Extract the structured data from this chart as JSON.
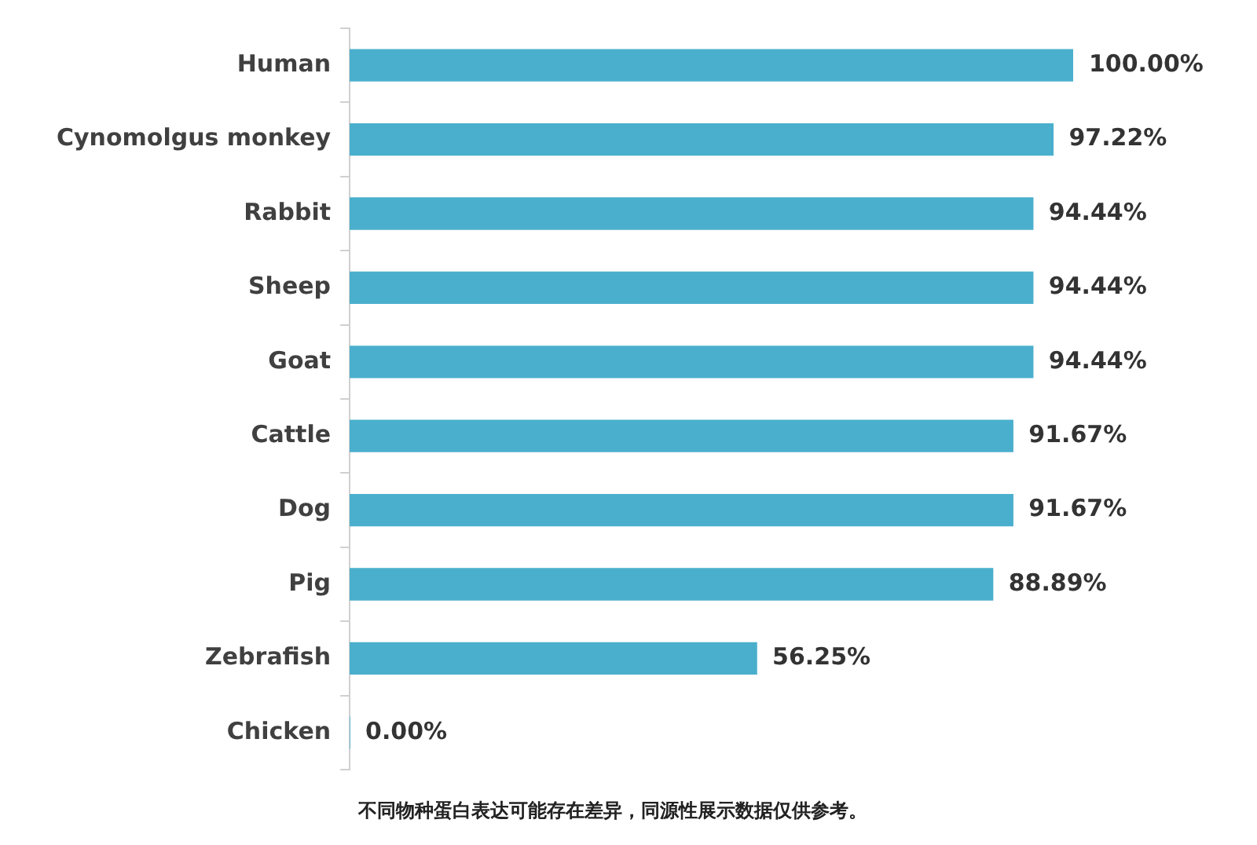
{
  "chart_data": {
    "type": "bar",
    "orientation": "horizontal",
    "categories": [
      "Human",
      "Cynomolgus monkey",
      "Rabbit",
      "Sheep",
      "Goat",
      "Cattle",
      "Dog",
      "Pig",
      "Zebrafish",
      "Chicken"
    ],
    "values": [
      100,
      97.22,
      94.44,
      94.44,
      94.44,
      91.67,
      91.67,
      88.89,
      56.25,
      0
    ],
    "value_labels": [
      "100.00%",
      "97.22%",
      "94.44%",
      "94.44%",
      "94.44%",
      "91.67%",
      "91.67%",
      "88.89%",
      "56.25%",
      "0.00%"
    ],
    "color": "#4aafcd",
    "legend": false,
    "tick_labels": "y",
    "annotations": [
      "不同物种蛋白表达可能存在差异，同源性展示数据仅供参考。"
    ]
  }
}
